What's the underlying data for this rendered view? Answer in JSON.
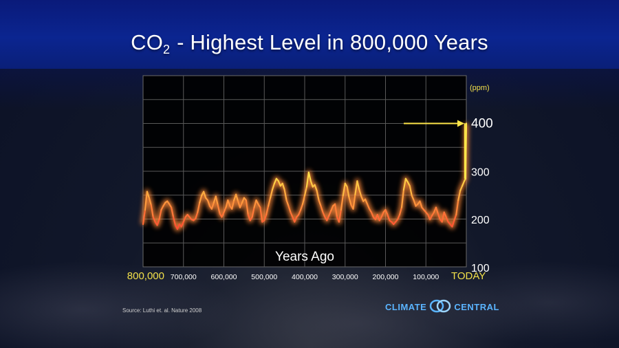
{
  "title": {
    "prefix": "CO",
    "subscript": "2",
    "rest": " - Highest Level in 800,000 Years"
  },
  "source": "Source: Luthi et. al. Nature 2008",
  "logo": {
    "left": "CLIMATE",
    "right": "CENTRAL",
    "icon": "climate-central-rings-icon"
  },
  "colors": {
    "line_low": "#ff5a3a",
    "line_high": "#ffe24a",
    "arrow": "#ffe64a",
    "yellow_label": "#f2e04a",
    "brand": "#5ab4ff"
  },
  "chart_data": {
    "type": "line",
    "xlabel": "Years Ago",
    "ylabel": "",
    "xlim": [
      800000,
      0
    ],
    "ylim": [
      100,
      400
    ],
    "grid": true,
    "x_ticks": [
      {
        "value": 800000,
        "label": "800,000",
        "highlight": true
      },
      {
        "value": 700000,
        "label": "700,000"
      },
      {
        "value": 600000,
        "label": "600,000"
      },
      {
        "value": 500000,
        "label": "500,000"
      },
      {
        "value": 400000,
        "label": "400,000"
      },
      {
        "value": 300000,
        "label": "300,000"
      },
      {
        "value": 200000,
        "label": "200,000"
      },
      {
        "value": 100000,
        "label": "100,000"
      },
      {
        "value": 0,
        "label": "TODAY",
        "highlight": true
      }
    ],
    "y_ticks": [
      {
        "value": 400,
        "label": "400"
      },
      {
        "value": 300,
        "label": "300"
      },
      {
        "value": 200,
        "label": "200"
      },
      {
        "value": 100,
        "label": "100"
      }
    ],
    "y_unit": "(ppm)",
    "annotation": {
      "type": "arrow",
      "target_value": 400
    },
    "series": [
      {
        "x": [
          800000,
          795000,
          790000,
          785000,
          780000,
          775000,
          770000,
          765000,
          760000,
          755000,
          750000,
          745000,
          740000,
          735000,
          730000,
          725000,
          720000,
          715000,
          710000,
          705000,
          700000,
          695000,
          690000,
          685000,
          680000,
          675000,
          670000,
          665000,
          660000,
          655000,
          650000,
          645000,
          640000,
          635000,
          630000,
          625000,
          620000,
          615000,
          610000,
          605000,
          600000,
          595000,
          590000,
          585000,
          580000,
          575000,
          570000,
          565000,
          560000,
          555000,
          550000,
          545000,
          540000,
          535000,
          530000,
          525000,
          520000,
          515000,
          510000,
          505000,
          500000,
          495000,
          490000,
          485000,
          480000,
          475000,
          470000,
          465000,
          460000,
          455000,
          450000,
          445000,
          440000,
          435000,
          430000,
          425000,
          420000,
          415000,
          410000,
          405000,
          400000,
          395000,
          390000,
          385000,
          380000,
          375000,
          370000,
          365000,
          360000,
          355000,
          350000,
          345000,
          340000,
          335000,
          330000,
          325000,
          320000,
          315000,
          310000,
          305000,
          300000,
          295000,
          290000,
          285000,
          280000,
          275000,
          270000,
          265000,
          260000,
          255000,
          250000,
          245000,
          240000,
          235000,
          230000,
          225000,
          220000,
          215000,
          210000,
          205000,
          200000,
          195000,
          190000,
          185000,
          180000,
          175000,
          170000,
          165000,
          160000,
          155000,
          150000,
          145000,
          140000,
          135000,
          130000,
          125000,
          120000,
          115000,
          110000,
          105000,
          100000,
          95000,
          90000,
          85000,
          80000,
          75000,
          70000,
          65000,
          60000,
          55000,
          50000,
          45000,
          40000,
          35000,
          30000,
          25000,
          20000,
          15000,
          10000,
          5000,
          2000,
          0
        ],
        "y": [
          190,
          220,
          258,
          245,
          230,
          205,
          195,
          188,
          200,
          220,
          228,
          235,
          238,
          232,
          225,
          205,
          188,
          180,
          190,
          185,
          195,
          205,
          210,
          205,
          200,
          198,
          202,
          215,
          235,
          250,
          258,
          245,
          240,
          228,
          222,
          235,
          248,
          230,
          212,
          205,
          215,
          225,
          240,
          228,
          222,
          240,
          252,
          238,
          225,
          235,
          245,
          240,
          210,
          198,
          205,
          225,
          240,
          232,
          225,
          195,
          198,
          210,
          228,
          245,
          262,
          275,
          285,
          280,
          270,
          275,
          262,
          240,
          228,
          215,
          205,
          195,
          205,
          210,
          220,
          232,
          250,
          268,
          298,
          280,
          268,
          272,
          260,
          240,
          228,
          215,
          205,
          198,
          208,
          218,
          228,
          232,
          205,
          195,
          220,
          250,
          275,
          268,
          245,
          230,
          222,
          252,
          280,
          262,
          248,
          238,
          242,
          232,
          222,
          215,
          205,
          200,
          210,
          198,
          205,
          215,
          220,
          210,
          198,
          195,
          190,
          195,
          200,
          210,
          225,
          262,
          285,
          278,
          270,
          250,
          240,
          228,
          232,
          238,
          225,
          220,
          215,
          210,
          200,
          208,
          215,
          225,
          212,
          200,
          195,
          215,
          205,
          195,
          190,
          185,
          198,
          210,
          240,
          260,
          270,
          280,
          285,
          400
        ]
      }
    ]
  }
}
